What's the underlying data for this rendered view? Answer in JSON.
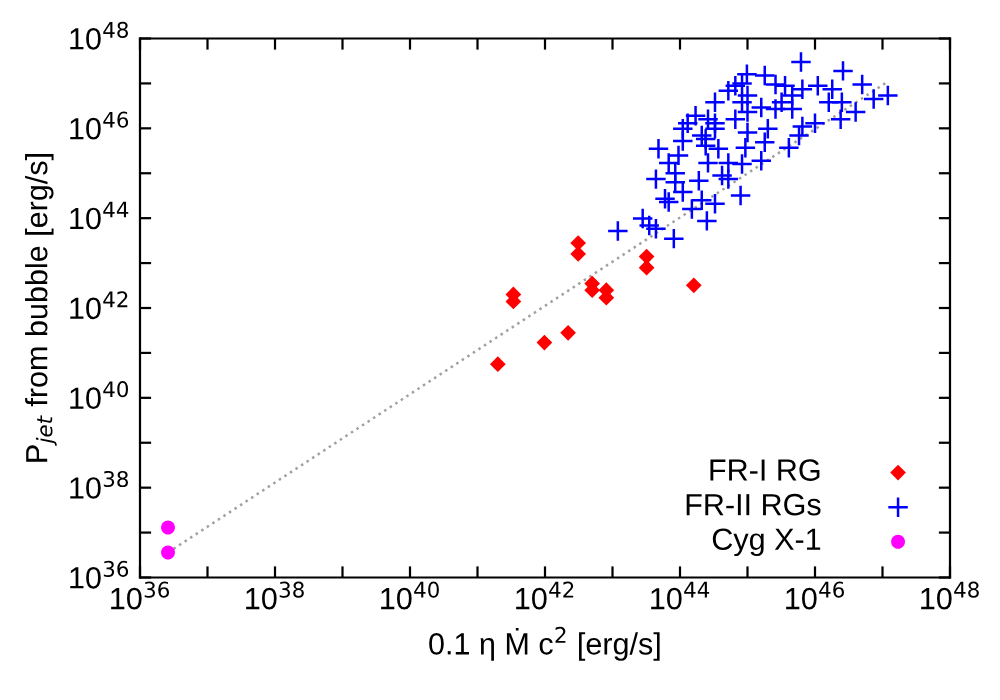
{
  "chart_data": {
    "type": "scatter",
    "xlabel": "0.1 η Ṁ c$^{2}$ [erg/s]",
    "ylabel": "P$_{jet}$ from bubble [erg/s]",
    "log": "xy",
    "grid": false,
    "legend": "bottom right",
    "xlim": [
      1e+36,
      1e+48
    ],
    "ylim": [
      1e+36,
      1e+48
    ],
    "xticks": [
      {
        "value": 1e+36,
        "label": "10$^{36}$"
      },
      {
        "value": 1e+37,
        "label": null
      },
      {
        "value": 1e+38,
        "label": "10$^{38}$"
      },
      {
        "value": 1e+39,
        "label": null
      },
      {
        "value": 1e+40,
        "label": "10$^{40}$"
      },
      {
        "value": 1e+41,
        "label": null
      },
      {
        "value": 1e+42,
        "label": "10$^{42}$"
      },
      {
        "value": 1e+43,
        "label": null
      },
      {
        "value": 1e+44,
        "label": "10$^{44}$"
      },
      {
        "value": 1e+45,
        "label": null
      },
      {
        "value": 1e+46,
        "label": "10$^{46}$"
      },
      {
        "value": 1e+47,
        "label": null
      },
      {
        "value": 1e+48,
        "label": "10$^{48}$"
      }
    ],
    "yticks": [
      {
        "value": 1e+36,
        "label": "10$^{36}$"
      },
      {
        "value": 1e+37,
        "label": null
      },
      {
        "value": 1e+38,
        "label": "10$^{38}$"
      },
      {
        "value": 1e+39,
        "label": null
      },
      {
        "value": 1e+40,
        "label": "10$^{40}$"
      },
      {
        "value": 1e+41,
        "label": null
      },
      {
        "value": 1e+42,
        "label": "10$^{42}$"
      },
      {
        "value": 1e+43,
        "label": null
      },
      {
        "value": 1e+44,
        "label": "10$^{44}$"
      },
      {
        "value": 1e+45,
        "label": null
      },
      {
        "value": 1e+46,
        "label": "10$^{46}$"
      },
      {
        "value": 1e+47,
        "label": null
      },
      {
        "value": 1e+48,
        "label": "10$^{48}$"
      }
    ],
    "series": [
      {
        "type": "line",
        "color": "#a0a0a0",
        "line_style": "dotted",
        "marker": "none",
        "x": [
          2.6e+36,
          1.2e+47
        ],
        "values": [
          3.6e+36,
          1.1e+47
        ]
      },
      {
        "name": "FR-I RG",
        "color": "#ff0000",
        "marker": "diamond",
        "x": [
          3.4e+41,
          3.4e+41,
          2e+41,
          9.8e+41,
          2.2e+42,
          3.1e+42,
          3.1e+42,
          5e+42,
          5e+42,
          8.1e+42,
          8.1e+42,
          3.2e+43,
          3.2e+43,
          1.6e+44
        ],
        "values": [
          2e+42,
          1.4e+42,
          5.6e+40,
          1.7e+41,
          2.8e+41,
          2.8e+43,
          1.6e+43,
          3.5e+42,
          2.5e+42,
          2.5e+42,
          1.7e+42,
          1.4e+43,
          7.9e+42,
          3.2e+42
        ]
      },
      {
        "name": "FR-II RGs",
        "color": "#0000ff",
        "marker": "cross",
        "x": [
          6.2e+45,
          2.6e+46,
          9.8e+44,
          1.8e+45,
          6.6e+44,
          5.2e+44,
          2.6e+45,
          3.6e+45,
          6.5e+45,
          1.1e+46,
          1.8e+46,
          5e+46,
          7.4e+46,
          1.2e+47,
          4e+46,
          2.4e+46,
          1e+46,
          6.5e+45,
          4.6e+45,
          2.6e+45,
          1.6e+45,
          1e+45,
          8.3e+44,
          1e+45,
          3.3e+44,
          1.7e+44,
          2.6e+44,
          1.1e+44,
          2.1e+44,
          3.3e+44,
          6.6e+44,
          1e+45,
          2e+45,
          4.1e+45,
          5.8e+45,
          1.8e+45,
          9.3e+44,
          3.7e+44,
          2.4e+44,
          1.1e+44,
          4.8e+43,
          9.5e+43,
          6.8e+43,
          2.6e+44,
          5.2e+44,
          8.3e+44,
          1.6e+45,
          4.2e+44,
          8.5e+43,
          4.4e+43,
          8.5e+43,
          1.9e+44,
          1.1e+44,
          6e+43,
          6.8e+43,
          2.1e+44,
          3.3e+44,
          7.9e+44,
          1.5e+44,
          2.8e+43,
          3.5e+43,
          1.2e+43,
          4.4e+43,
          8.1e+43,
          2.5e+44,
          3.3e+44,
          1.6e+46,
          1.3e+44,
          2.4e+44,
          5.2e+44,
          3.2e+45,
          4.6e+45,
          8.3e+44,
          2.5e+46
        ],
        "values": [
          3e+47,
          1.9e+47,
          1.6e+47,
          1.5e+47,
          8.9e+46,
          6.9e+46,
          9.5e+46,
          8.9e+46,
          7.4e+46,
          8.9e+46,
          7.4e+46,
          9.5e+46,
          4.5e+46,
          5.4e+46,
          2.3e+46,
          1.6e+46,
          1.3e+46,
          1.1e+46,
          2.7e+46,
          2.7e+46,
          2.9e+46,
          2.3e+46,
          3.8e+46,
          5.4e+46,
          3.8e+46,
          1.9e+46,
          1.6e+46,
          9.8e+45,
          6.9e+45,
          9.8e+45,
          1.6e+46,
          8.1e+45,
          9.8e+45,
          3.7e+45,
          6.9e+45,
          4.9e+45,
          3.7e+45,
          3.5e+45,
          4.1e+45,
          5.2e+45,
          3.5e+45,
          2.5e+45,
          1.7e+45,
          1.7e+45,
          1.7e+45,
          1.6e+45,
          1.9e+45,
          8.9e+44,
          1e+45,
          7.4e+44,
          6.3e+44,
          6.8e+44,
          3.8e+44,
          2.7e+44,
          2.3e+44,
          2.5e+44,
          2.1e+44,
          3.2e+44,
          1.6e+44,
          9.8e+43,
          6.9e+43,
          5.2e+43,
          5.8e+43,
          3.5e+43,
          8.7e+43,
          1.3e+46,
          3.8e+46,
          1.3e+46,
          5.8e+45,
          7.4e+44,
          3.8e+46,
          5.4e+46,
          1e+47,
          3.8e+46
        ]
      },
      {
        "name": "Cyg X-1",
        "color": "#ff00ff",
        "marker": "circle",
        "x": [
          2.6e+36,
          2.6e+36
        ],
        "values": [
          1.3e+37,
          3.6e+36
        ]
      }
    ]
  }
}
